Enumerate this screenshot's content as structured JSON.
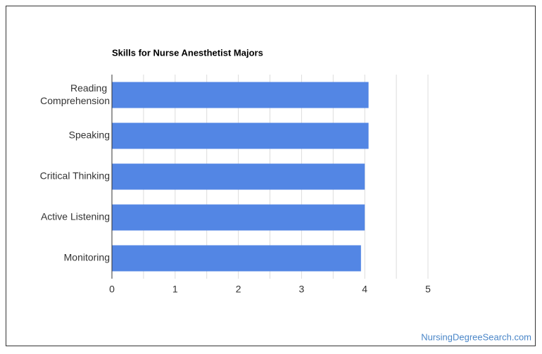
{
  "chart_data": {
    "type": "bar",
    "orientation": "horizontal",
    "title": "Skills for Nurse Anesthetist Majors",
    "categories": [
      "Reading Comprehension",
      "Speaking",
      "Critical Thinking",
      "Active Listening",
      "Monitoring"
    ],
    "values": [
      4.06,
      4.06,
      4.0,
      4.0,
      3.94
    ],
    "color": "#5386e4",
    "xlim": [
      0,
      5
    ],
    "xticks": [
      0,
      1,
      2,
      3,
      4,
      5
    ],
    "grid": true,
    "source": "NursingDegreeSearch.com"
  }
}
